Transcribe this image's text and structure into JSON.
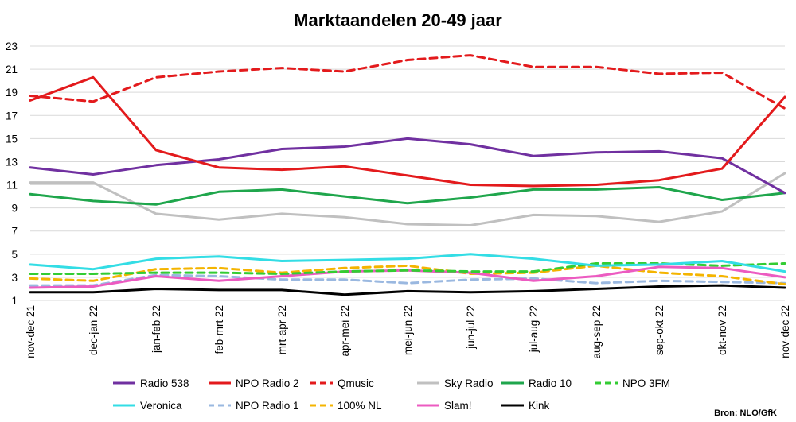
{
  "chart_data": {
    "type": "line",
    "title": "Marktaandelen 20-49 jaar",
    "xlabel": "",
    "ylabel": "",
    "source": "Bron: NLO/GfK",
    "ylim": [
      1,
      23
    ],
    "yticks": [
      "1",
      "3",
      "5",
      "7",
      "9",
      "11",
      "13",
      "15",
      "17",
      "19",
      "21",
      "23"
    ],
    "grid": "horizontal",
    "legend_position": "bottom",
    "categories": [
      "nov-dec 21",
      "dec-jan 22",
      "jan-feb 22",
      "feb-mrt 22",
      "mrt-apr 22",
      "apr-mei 22",
      "mei-jun 22",
      "jun-jul 22",
      "jul-aug 22",
      "aug-sep 22",
      "sep-okt 22",
      "okt-nov 22",
      "nov-dec 22"
    ],
    "series": [
      {
        "name": "Radio 538",
        "color": "#7030a0",
        "dash": "solid",
        "values": [
          12.5,
          11.9,
          12.7,
          13.2,
          14.1,
          14.3,
          15.0,
          14.5,
          13.5,
          13.8,
          13.9,
          13.3,
          10.3
        ]
      },
      {
        "name": "NPO Radio 2",
        "color": "#e31a1c",
        "dash": "solid",
        "values": [
          18.3,
          20.3,
          14.0,
          12.5,
          12.3,
          12.6,
          11.8,
          11.0,
          10.9,
          11.0,
          11.4,
          12.4,
          18.6
        ]
      },
      {
        "name": "Qmusic",
        "color": "#e31a1c",
        "dash": "dashed",
        "values": [
          18.7,
          18.2,
          20.3,
          20.8,
          21.1,
          20.8,
          21.8,
          22.2,
          21.2,
          21.2,
          20.6,
          20.7,
          17.6
        ]
      },
      {
        "name": "Sky Radio",
        "color": "#c0c0c0",
        "dash": "solid",
        "values": [
          11.2,
          11.2,
          8.5,
          8.0,
          8.5,
          8.2,
          7.6,
          7.5,
          8.4,
          8.3,
          7.8,
          8.7,
          12.0
        ]
      },
      {
        "name": "Radio 10",
        "color": "#1fa64c",
        "dash": "solid",
        "values": [
          10.2,
          9.6,
          9.3,
          10.4,
          10.6,
          10.0,
          9.4,
          9.9,
          10.6,
          10.6,
          10.8,
          9.7,
          10.3
        ]
      },
      {
        "name": "NPO 3FM",
        "color": "#33cc33",
        "dash": "dashed",
        "values": [
          3.3,
          3.3,
          3.4,
          3.4,
          3.3,
          3.5,
          3.6,
          3.5,
          3.5,
          4.2,
          4.2,
          4.0,
          4.2
        ]
      },
      {
        "name": "Veronica",
        "color": "#33dde5",
        "dash": "solid",
        "values": [
          4.1,
          3.7,
          4.6,
          4.8,
          4.4,
          4.5,
          4.6,
          5.0,
          4.6,
          4.0,
          4.1,
          4.4,
          3.5
        ]
      },
      {
        "name": "NPO Radio 1",
        "color": "#9ab8e0",
        "dash": "dashed",
        "values": [
          2.3,
          2.3,
          3.2,
          3.1,
          2.8,
          2.8,
          2.5,
          2.8,
          2.9,
          2.5,
          2.7,
          2.6,
          2.5
        ]
      },
      {
        "name": "100% NL",
        "color": "#f4b400",
        "dash": "dashed",
        "values": [
          2.9,
          2.7,
          3.7,
          3.8,
          3.4,
          3.8,
          4.0,
          3.3,
          3.4,
          4.0,
          3.4,
          3.1,
          2.4
        ]
      },
      {
        "name": "Slam!",
        "color": "#ec5bc1",
        "dash": "solid",
        "values": [
          2.1,
          2.2,
          3.1,
          2.7,
          3.1,
          3.5,
          3.6,
          3.4,
          2.7,
          3.1,
          3.9,
          3.8,
          3.0
        ]
      },
      {
        "name": "Kink",
        "color": "#000000",
        "dash": "solid",
        "values": [
          1.7,
          1.7,
          2.0,
          1.9,
          1.9,
          1.5,
          1.8,
          1.7,
          1.8,
          2.0,
          2.2,
          2.3,
          2.1
        ]
      }
    ]
  }
}
